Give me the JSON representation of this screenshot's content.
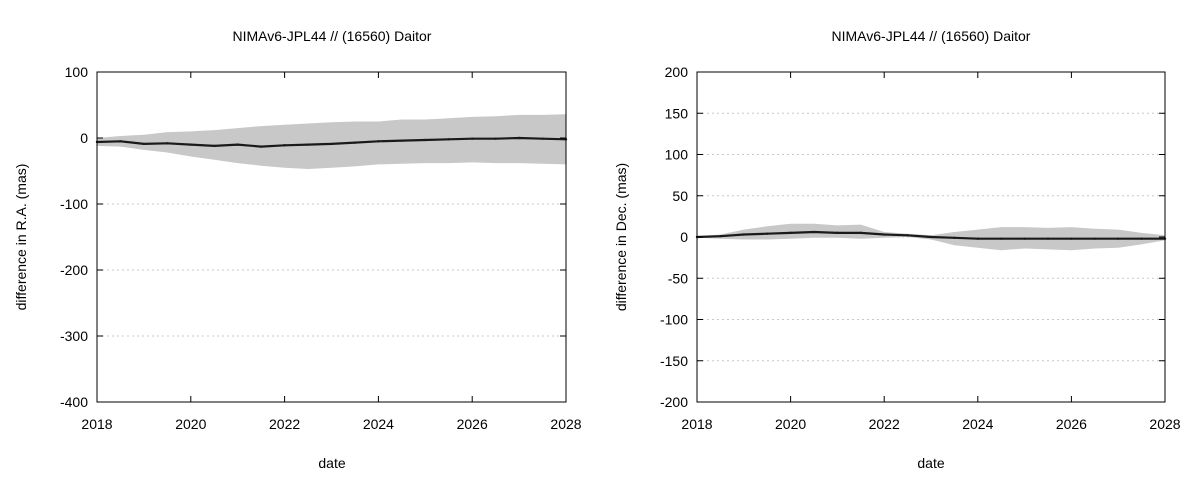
{
  "chart_data": [
    {
      "type": "line",
      "title": "NIMAv6-JPL44 // (16560) Daitor",
      "xlabel": "date",
      "ylabel": "difference in R.A. (mas)",
      "xlim": [
        2018,
        2028
      ],
      "ylim": [
        -400,
        100
      ],
      "xticks": [
        2018,
        2020,
        2022,
        2024,
        2026,
        2028
      ],
      "yticks": [
        -400,
        -300,
        -200,
        -100,
        0,
        100
      ],
      "grid": true,
      "series_color": "#1a1a1a",
      "band_color": "#c8c8c8",
      "series": [
        {
          "x": [
            2018.0,
            2018.5,
            2019.0,
            2019.5,
            2020.0,
            2020.5,
            2021.0,
            2021.5,
            2022.0,
            2022.5,
            2023.0,
            2023.5,
            2024.0,
            2024.5,
            2025.0,
            2025.5,
            2026.0,
            2026.5,
            2027.0,
            2027.5,
            2028.0
          ],
          "values": [
            -6,
            -5,
            -9,
            -8,
            -10,
            -12,
            -10,
            -13,
            -11,
            -10,
            -9,
            -7,
            -5,
            -4,
            -3,
            -2,
            -1,
            -1,
            0,
            -1,
            -2
          ],
          "upper": [
            0,
            3,
            5,
            9,
            10,
            12,
            15,
            18,
            20,
            22,
            24,
            25,
            25,
            28,
            28,
            30,
            32,
            33,
            35,
            35,
            36
          ],
          "lower": [
            -12,
            -13,
            -18,
            -22,
            -28,
            -33,
            -38,
            -42,
            -45,
            -47,
            -45,
            -43,
            -40,
            -39,
            -38,
            -38,
            -37,
            -38,
            -38,
            -39,
            -40
          ]
        }
      ]
    },
    {
      "type": "line",
      "title": "NIMAv6-JPL44 // (16560) Daitor",
      "xlabel": "date",
      "ylabel": "difference in Dec. (mas)",
      "xlim": [
        2018,
        2028
      ],
      "ylim": [
        -200,
        200
      ],
      "xticks": [
        2018,
        2020,
        2022,
        2024,
        2026,
        2028
      ],
      "yticks": [
        -200,
        -150,
        -100,
        -50,
        0,
        50,
        100,
        150,
        200
      ],
      "grid": true,
      "series_color": "#1a1a1a",
      "band_color": "#c8c8c8",
      "series": [
        {
          "x": [
            2018.0,
            2018.5,
            2019.0,
            2019.5,
            2020.0,
            2020.5,
            2021.0,
            2021.5,
            2022.0,
            2022.5,
            2023.0,
            2023.5,
            2024.0,
            2024.5,
            2025.0,
            2025.5,
            2026.0,
            2026.5,
            2027.0,
            2027.5,
            2028.0
          ],
          "values": [
            0,
            1,
            3,
            4,
            5,
            6,
            5,
            5,
            3,
            2,
            0,
            -1,
            -2,
            -2,
            -2,
            -2,
            -2,
            -2,
            -2,
            -2,
            -2
          ],
          "upper": [
            1,
            3,
            9,
            13,
            16,
            16,
            14,
            15,
            6,
            4,
            2,
            6,
            9,
            12,
            12,
            11,
            12,
            10,
            9,
            5,
            2
          ],
          "lower": [
            -1,
            -2,
            -3,
            -3,
            -2,
            -1,
            -1,
            -2,
            -1,
            0,
            -3,
            -10,
            -13,
            -16,
            -14,
            -15,
            -16,
            -14,
            -13,
            -9,
            -4
          ]
        }
      ]
    }
  ]
}
